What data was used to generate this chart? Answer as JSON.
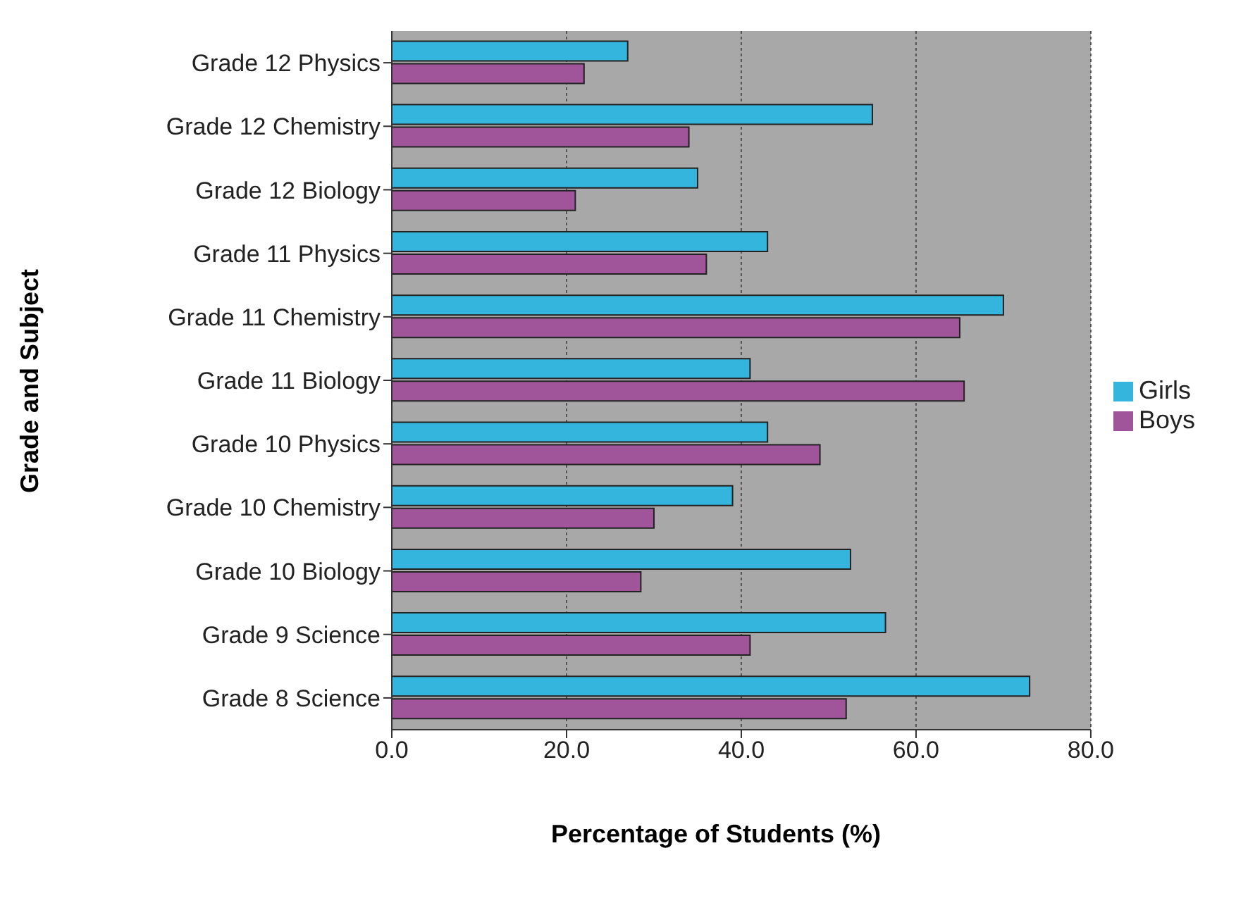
{
  "chart_data": {
    "type": "bar",
    "orientation": "horizontal",
    "xlabel": "Percentage of Students (%)",
    "ylabel": "Grade and Subject",
    "categories": [
      "Grade 12 Physics",
      "Grade 12 Chemistry",
      "Grade 12 Biology",
      "Grade 11 Physics",
      "Grade 11 Chemistry",
      "Grade 11 Biology",
      "Grade 10 Physics",
      "Grade 10 Chemistry",
      "Grade 10 Biology",
      "Grade 9 Science",
      "Grade 8 Science"
    ],
    "series": [
      {
        "name": "Girls",
        "color": "#33b5dd",
        "values": [
          27,
          55,
          35,
          43,
          70,
          41,
          43,
          39,
          52.5,
          56.5,
          73
        ]
      },
      {
        "name": "Boys",
        "color": "#a0559a",
        "values": [
          22,
          34,
          21,
          36,
          65,
          65.5,
          49,
          30,
          28.5,
          41,
          52
        ]
      }
    ],
    "xlim": [
      0,
      80
    ],
    "xticks": [
      {
        "value": 0,
        "label": "0.0"
      },
      {
        "value": 20,
        "label": "20.0"
      },
      {
        "value": 40,
        "label": "40.0"
      },
      {
        "value": 60,
        "label": "60.0"
      },
      {
        "value": 80,
        "label": "80.0"
      }
    ],
    "grid": "x",
    "legend": "right"
  }
}
